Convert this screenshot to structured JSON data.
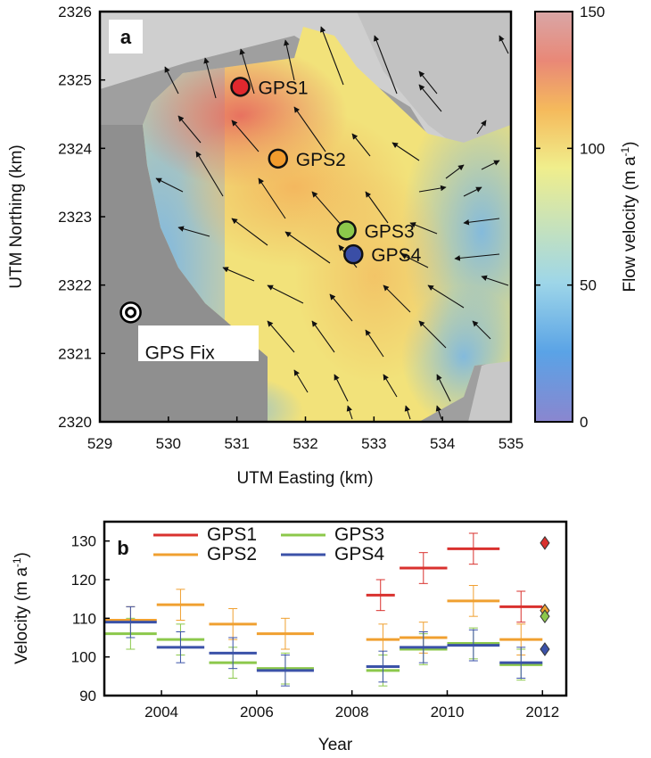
{
  "chart_data": [
    {
      "type": "heatmap",
      "panel_label": "a",
      "xlabel": "UTM Easting (km)",
      "ylabel": "UTM Northing (km)",
      "xlim": [
        529,
        535
      ],
      "ylim": [
        2320,
        2326
      ],
      "xticks": [
        "529",
        "530",
        "531",
        "532",
        "533",
        "534",
        "535"
      ],
      "yticks": [
        "2320",
        "2321",
        "2322",
        "2323",
        "2324",
        "2325",
        "2326"
      ],
      "colorbar": {
        "label": "Flow velocity (m a-1)",
        "label_main": "Flow velocity (m a",
        "label_sup": "-1",
        "label_close": ")",
        "range": [
          0,
          150
        ],
        "ticks": [
          "0",
          "50",
          "100",
          "150"
        ],
        "colors": [
          "#8a86cf",
          "#5aa3e6",
          "#9ed6e8",
          "#f0ee8c",
          "#f5ba5c",
          "#e98877",
          "#d9a6a6"
        ]
      },
      "points": [
        {
          "name": "GPS1",
          "x": 531.05,
          "y": 2324.9,
          "color": "#e0282e"
        },
        {
          "name": "GPS2",
          "x": 531.6,
          "y": 2323.85,
          "color": "#f29c2d"
        },
        {
          "name": "GPS3",
          "x": 532.6,
          "y": 2322.8,
          "color": "#8cc84b"
        },
        {
          "name": "GPS4",
          "x": 532.7,
          "y": 2322.45,
          "color": "#3a4ea6"
        },
        {
          "name": "GPS Fix",
          "x": 529.45,
          "y": 2321.6,
          "color": "#ffffff",
          "fixed": true
        }
      ]
    },
    {
      "type": "line",
      "panel_label": "b",
      "xlabel": "Year",
      "ylabel": "Velocity (m a-1)",
      "ylabel_main": "Velocity (m a",
      "ylabel_sup": "-1",
      "ylabel_close": ")",
      "xlim": [
        2002.8,
        2012.5
      ],
      "ylim": [
        90,
        135
      ],
      "xticks": [
        2004,
        2006,
        2008,
        2010,
        2012
      ],
      "yticks": [
        90,
        100,
        110,
        120,
        130
      ],
      "legend_position": "top-left",
      "series": [
        {
          "name": "GPS1",
          "color": "#d9312e",
          "segments": [
            [
              2008.3,
              2008.9,
              116,
              4
            ],
            [
              2009.0,
              2010.0,
              123,
              4
            ],
            [
              2010.0,
              2011.1,
              128,
              4
            ],
            [
              2011.1,
              2012.0,
              113,
              4
            ]
          ],
          "latest": 129.5
        },
        {
          "name": "GPS2",
          "color": "#f0a030",
          "segments": [
            [
              2002.8,
              2003.9,
              109.5,
              3.5
            ],
            [
              2003.9,
              2004.9,
              113.5,
              4
            ],
            [
              2005.0,
              2006.0,
              108.5,
              4
            ],
            [
              2006.0,
              2007.2,
              106,
              4
            ],
            [
              2008.3,
              2009.0,
              104.5,
              4
            ],
            [
              2009.0,
              2010.0,
              105,
              4
            ],
            [
              2010.0,
              2011.1,
              114.5,
              4
            ],
            [
              2011.1,
              2012.0,
              104.5,
              4
            ]
          ],
          "latest": 112
        },
        {
          "name": "GPS3",
          "color": "#8cc84b",
          "segments": [
            [
              2002.8,
              2003.9,
              106,
              4
            ],
            [
              2003.9,
              2004.9,
              104.5,
              4
            ],
            [
              2005.0,
              2006.0,
              98.5,
              4
            ],
            [
              2006.0,
              2007.2,
              97,
              4
            ],
            [
              2008.3,
              2009.0,
              96.5,
              4
            ],
            [
              2009.0,
              2010.0,
              102,
              4
            ],
            [
              2010.0,
              2011.1,
              103.5,
              4
            ],
            [
              2011.1,
              2012.0,
              98,
              4
            ]
          ],
          "latest": 110.5
        },
        {
          "name": "GPS4",
          "color": "#3b52a8",
          "segments": [
            [
              2002.8,
              2003.9,
              109,
              4
            ],
            [
              2003.9,
              2004.9,
              102.5,
              4
            ],
            [
              2005.0,
              2006.0,
              101,
              4
            ],
            [
              2006.0,
              2007.2,
              96.5,
              4
            ],
            [
              2008.3,
              2009.0,
              97.5,
              4
            ],
            [
              2009.0,
              2010.0,
              102.5,
              4
            ],
            [
              2010.0,
              2011.1,
              103,
              4
            ],
            [
              2011.1,
              2012.0,
              98.5,
              4
            ]
          ],
          "latest": 102
        }
      ]
    }
  ]
}
